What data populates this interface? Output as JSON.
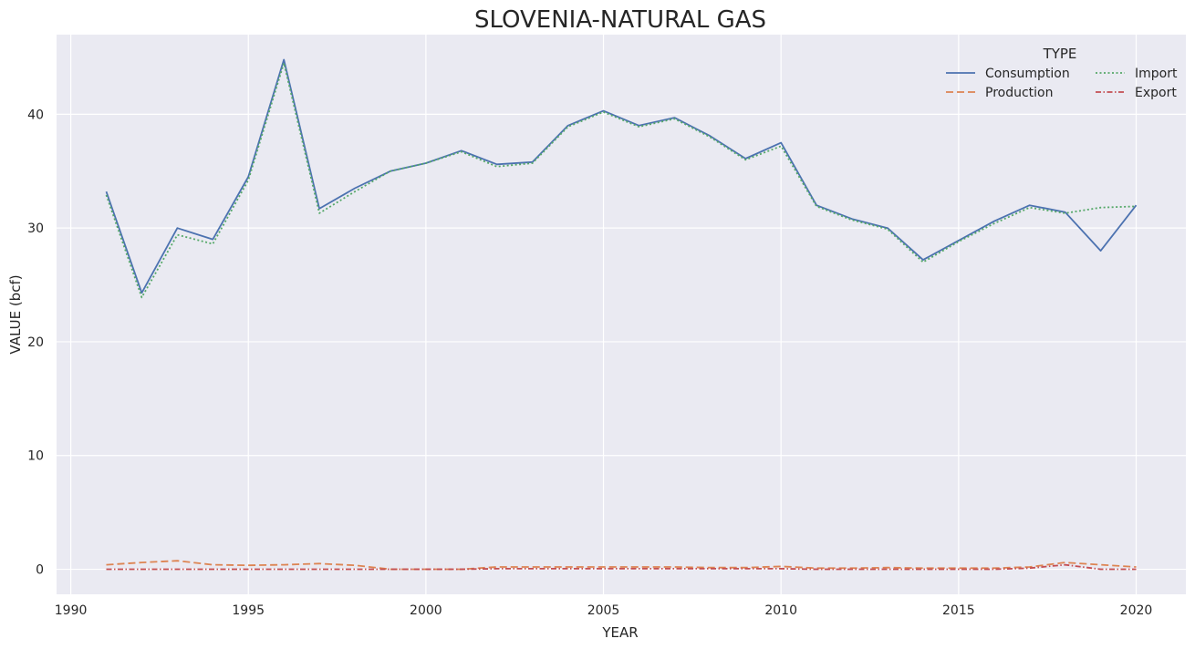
{
  "chart_data": {
    "type": "line",
    "title": "SLOVENIA-NATURAL GAS",
    "xlabel": "YEAR",
    "ylabel": "VALUE (bcf)",
    "xlim": [
      1989.6,
      2021.4
    ],
    "ylim": [
      -2.2,
      47
    ],
    "xticks": [
      1990,
      1995,
      2000,
      2005,
      2010,
      2015,
      2020
    ],
    "yticks": [
      0,
      10,
      20,
      30,
      40
    ],
    "grid": true,
    "legend": {
      "title": "TYPE",
      "placement": "top-right"
    },
    "x": [
      1991,
      1992,
      1993,
      1994,
      1995,
      1996,
      1997,
      1998,
      1999,
      2000,
      2001,
      2002,
      2003,
      2004,
      2005,
      2006,
      2007,
      2008,
      2009,
      2010,
      2011,
      2012,
      2013,
      2014,
      2015,
      2016,
      2017,
      2018,
      2019,
      2020
    ],
    "series": [
      {
        "name": "Consumption",
        "color": "#4c72b0",
        "dash": "solid",
        "values": [
          33.2,
          24.3,
          30.0,
          29.0,
          34.5,
          44.8,
          31.7,
          33.5,
          35.0,
          35.7,
          36.8,
          35.6,
          35.8,
          39.0,
          40.3,
          39.0,
          39.7,
          38.1,
          36.1,
          37.5,
          32.0,
          30.8,
          30.0,
          27.2,
          28.9,
          30.6,
          32.0,
          31.4,
          28.0,
          32.0
        ]
      },
      {
        "name": "Production",
        "color": "#dd8452",
        "dash": "dashed",
        "values": [
          0.4,
          0.6,
          0.75,
          0.4,
          0.35,
          0.4,
          0.5,
          0.35,
          0.0,
          0.0,
          0.0,
          0.2,
          0.2,
          0.2,
          0.2,
          0.2,
          0.2,
          0.15,
          0.15,
          0.25,
          0.1,
          0.1,
          0.15,
          0.1,
          0.1,
          0.1,
          0.2,
          0.6,
          0.4,
          0.2
        ]
      },
      {
        "name": "Import",
        "color": "#55a868",
        "dash": "dotted",
        "values": [
          32.9,
          23.9,
          29.4,
          28.6,
          34.2,
          44.5,
          31.3,
          33.2,
          35.0,
          35.7,
          36.7,
          35.4,
          35.7,
          38.9,
          40.2,
          38.9,
          39.6,
          38.0,
          36.0,
          37.2,
          31.9,
          30.7,
          29.9,
          27.0,
          28.8,
          30.4,
          31.8,
          31.3,
          31.8,
          31.9
        ]
      },
      {
        "name": "Export",
        "color": "#c44e52",
        "dash": "dashdot",
        "values": [
          0.0,
          0.0,
          0.0,
          0.0,
          0.0,
          0.0,
          0.0,
          0.0,
          0.0,
          0.0,
          0.0,
          0.05,
          0.05,
          0.05,
          0.05,
          0.05,
          0.05,
          0.05,
          0.05,
          0.05,
          0.0,
          0.0,
          0.0,
          0.0,
          0.0,
          0.0,
          0.1,
          0.4,
          0.0,
          0.0
        ]
      }
    ]
  }
}
